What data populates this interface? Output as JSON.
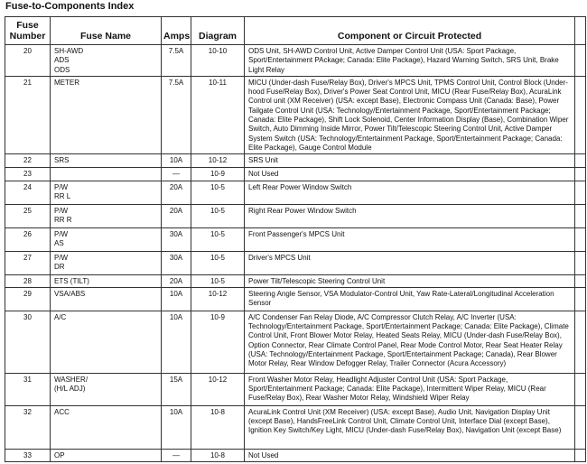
{
  "title": "Fuse-to-Components Index",
  "columns": [
    "Fuse Number",
    "Fuse Name",
    "Amps",
    "Diagram",
    "Component or Circuit Protected"
  ],
  "rows": [
    {
      "number": "20",
      "name": "SH-AWD\nADS\nODS",
      "amps": "7.5A",
      "diagram": "10-10",
      "components": "ODS Unit, SH-AWD Control Unit, Active Damper Control Unit (USA: Sport Package, Sport/Entertainment PAckage; Canada: Elite Package), Hazard Warning Switch, SRS Unit, Brake Light Relay"
    },
    {
      "number": "21",
      "name": "METER",
      "amps": "7.5A",
      "diagram": "10-11",
      "components": "MICU (Under-dash Fuse/Relay Box), Driver's MPCS Unit, TPMS Control Unit, Control Block (Under-hood Fuse/Relay Box), Driver's Power Seat Control Unit, MICU (Rear Fuse/Relay Box), AcuraLink Control unit (XM Receiver) (USA: except Base), Electronic Compass Unit (Canada: Base), Power Tailgate Control Unit (USA: Technology/Entertainment Package, Sport/Entertainment Package; Canada: Elite Package), Shift Lock Solenoid, Center Information Display (Base), Combination Wiper Switch, Auto Dimming Inside Mirror, Power Tilt/Telescopic Steering Control Unit, Active Damper System Switch (USA: Technology/Entertainment Package, Sport/Entertainment Package; Canada: Elite Package), Gauge Control Module"
    },
    {
      "number": "22",
      "name": "SRS",
      "amps": "10A",
      "diagram": "10-12",
      "components": "SRS Unit"
    },
    {
      "number": "23",
      "name": "",
      "amps": "—",
      "diagram": "10-9",
      "components": "Not Used"
    },
    {
      "number": "24",
      "name": "P/W\nRR L",
      "amps": "20A",
      "diagram": "10-5",
      "components": "Left Rear Power Window Switch"
    },
    {
      "number": "25",
      "name": "P/W\nRR R",
      "amps": "20A",
      "diagram": "10-5",
      "components": "Right Rear Power Window Switch"
    },
    {
      "number": "26",
      "name": "P/W\nAS",
      "amps": "30A",
      "diagram": "10-5",
      "components": "Front Passenger's MPCS Unit"
    },
    {
      "number": "27",
      "name": "P/W\nDR",
      "amps": "30A",
      "diagram": "10-5",
      "components": "Driver's MPCS Unit"
    },
    {
      "number": "28",
      "name": "ETS (TILT)",
      "amps": "20A",
      "diagram": "10-5",
      "components": "Power Tilt/Telescopic Steering Control Unit"
    },
    {
      "number": "29",
      "name": "VSA/ABS",
      "amps": "10A",
      "diagram": "10-12",
      "components": "Steering Angle Sensor, VSA Modulator-Control Unit, Yaw Rate-Lateral/Longitudinal Acceleration Sensor"
    },
    {
      "number": "30",
      "name": "A/C",
      "amps": "10A",
      "diagram": "10-9",
      "components": "A/C Condenser Fan Relay Diode, A/C Compressor Clutch Relay, A/C Inverter (USA: Technology/Entertainment Package, Sport/Entertainment Package; Canada: Elite Package), Climate Control Unit, Front Blower Motor Relay, Heated Seats Relay, MICU (Under-dash Fuse/Relay Box), Option Connector, Rear Climate Control Panel, Rear Mode Control Motor, Rear Seat Heater Relay (USA: Technology/Entertainment Package, Sport/Entertainment Package; Canada), Rear Blower Motor Relay, Rear Window Defogger Relay, Trailer Connector (Acura Accessory)"
    },
    {
      "number": "31",
      "name": "WASHER/\n(H/L ADJ)",
      "amps": "15A",
      "diagram": "10-12",
      "components": "Front Washer Motor Relay, Headlight Adjuster Control Unit (USA: Sport Package, Sport/Entertainment Package; Canada: Elite Package), Intermittent Wiper Relay, MICU (Rear Fuse/Relay Box), Rear Washer Motor Relay, Windshield Wiper Relay"
    },
    {
      "number": "32",
      "name": "ACC",
      "amps": "10A",
      "diagram": "10-8",
      "components": "AcuraLink Control Unit (XM Receiver) (USA: except Base), Audio Unit, Navigation Display Unit (except Base), HandsFreeLink Control Unit, Climate Control Unit, Interface Dial (except Base), Ignition Key Switch/Key Light, MICU (Under-dash Fuse/Relay Box), Navigation Unit (except Base)"
    },
    {
      "number": "33",
      "name": "OP",
      "amps": "—",
      "diagram": "10-8",
      "components": "Not Used"
    }
  ]
}
